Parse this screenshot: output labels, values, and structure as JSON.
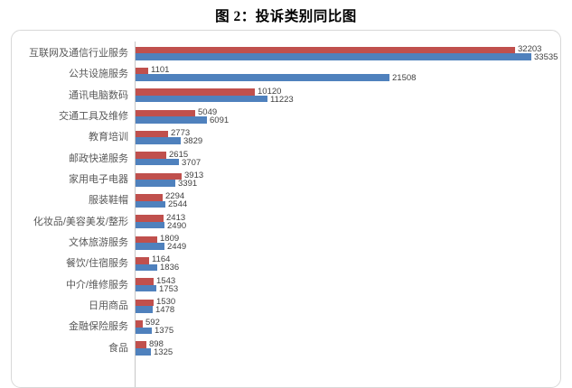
{
  "title": "图 2：投诉类别同比图",
  "chart_data": {
    "type": "bar",
    "orientation": "horizontal",
    "title": "图 2：投诉类别同比图",
    "categories": [
      "互联网及通信行业服务",
      "公共设施服务",
      "通讯电脑数码",
      "交通工具及维修",
      "教育培训",
      "邮政快递服务",
      "家用电子电器",
      "服装鞋帽",
      "化妆品/美容美发/整形",
      "文体旅游服务",
      "餐饮/住宿服务",
      "中介/维修服务",
      "日用商品",
      "金融保险服务",
      "食品"
    ],
    "series": [
      {
        "id": "red-top-bar",
        "color": "#C0504D",
        "values": [
          32203,
          1101,
          10120,
          5049,
          2773,
          2615,
          3913,
          2294,
          2413,
          1809,
          1164,
          1543,
          1530,
          592,
          898
        ]
      },
      {
        "id": "blue-bottom-bar",
        "color": "#4F81BD",
        "values": [
          33535,
          21508,
          11223,
          6091,
          3829,
          3707,
          3391,
          2544,
          2490,
          2449,
          1836,
          1753,
          1478,
          1375,
          1325
        ]
      }
    ],
    "value_labels_shown": true,
    "legend": "none",
    "grid": "off",
    "xlim": [
      0,
      35000
    ],
    "axis_line_color": "#C6C6C6",
    "frame_border_color": "#D8D8D8"
  }
}
